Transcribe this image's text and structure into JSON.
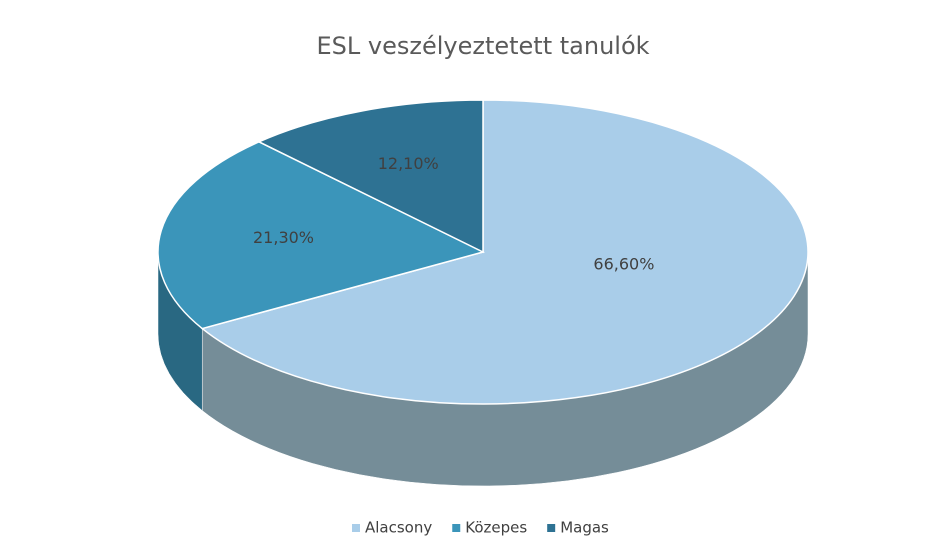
{
  "chart_data": {
    "type": "pie",
    "title": "ESL veszélyeztetett tanulók",
    "categories": [
      "Alacsony",
      "Közepes",
      "Magas"
    ],
    "values": [
      66.6,
      21.3,
      12.1
    ],
    "value_labels": [
      "66,60%",
      "21,30%",
      "12,10%"
    ],
    "colors": [
      "#a9cde9",
      "#3b95ba",
      "#2e7293"
    ],
    "legend": "bottom"
  }
}
